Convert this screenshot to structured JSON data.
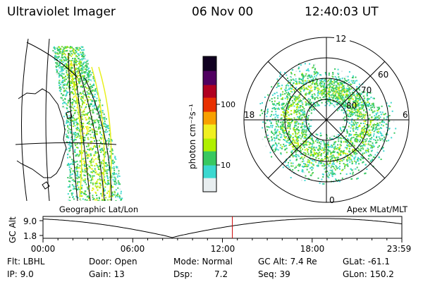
{
  "header": {
    "title": "Ultraviolet Imager",
    "date": "06 Nov 00",
    "time": "12:40:03 UT"
  },
  "colorbar": {
    "unit_label": "photon cm⁻²s⁻¹",
    "ticks": [
      "100",
      "10"
    ],
    "scale": "log",
    "colors": [
      "#e8eef0",
      "#3cd8d0",
      "#38c860",
      "#b0f000",
      "#f0f020",
      "#f8a000",
      "#e83000",
      "#b00020",
      "#500060",
      "#100020"
    ]
  },
  "map_left": {
    "caption": "Geographic Lat/Lon"
  },
  "map_right": {
    "caption": "Apex MLat/MLT",
    "mlt_labels": {
      "top": "12",
      "left": "18",
      "right": "6",
      "bottom": "0"
    },
    "lat_labels": [
      "60",
      "70",
      "80"
    ]
  },
  "altitude_plot": {
    "ylabel": "GC Alt",
    "yticks": [
      "9.0",
      "1.8"
    ],
    "xticks": [
      "00:00",
      "06:00",
      "12:00",
      "18:00",
      "23:59"
    ],
    "marker_color": "#cc0000",
    "marker_time": "12:40"
  },
  "info": {
    "filter": "Flt: LBHL",
    "ip": "IP:  9.0",
    "door": "Door: Open",
    "gain": "Gain: 13",
    "mode": "Mode: Normal",
    "dsp_label": "Dsp:",
    "dsp_value": "7.2",
    "gc_alt": "GC Alt: 7.4 Re",
    "seq": "Seq: 39",
    "glat": "GLat: -61.1",
    "glon": "GLon: 150.2"
  }
}
